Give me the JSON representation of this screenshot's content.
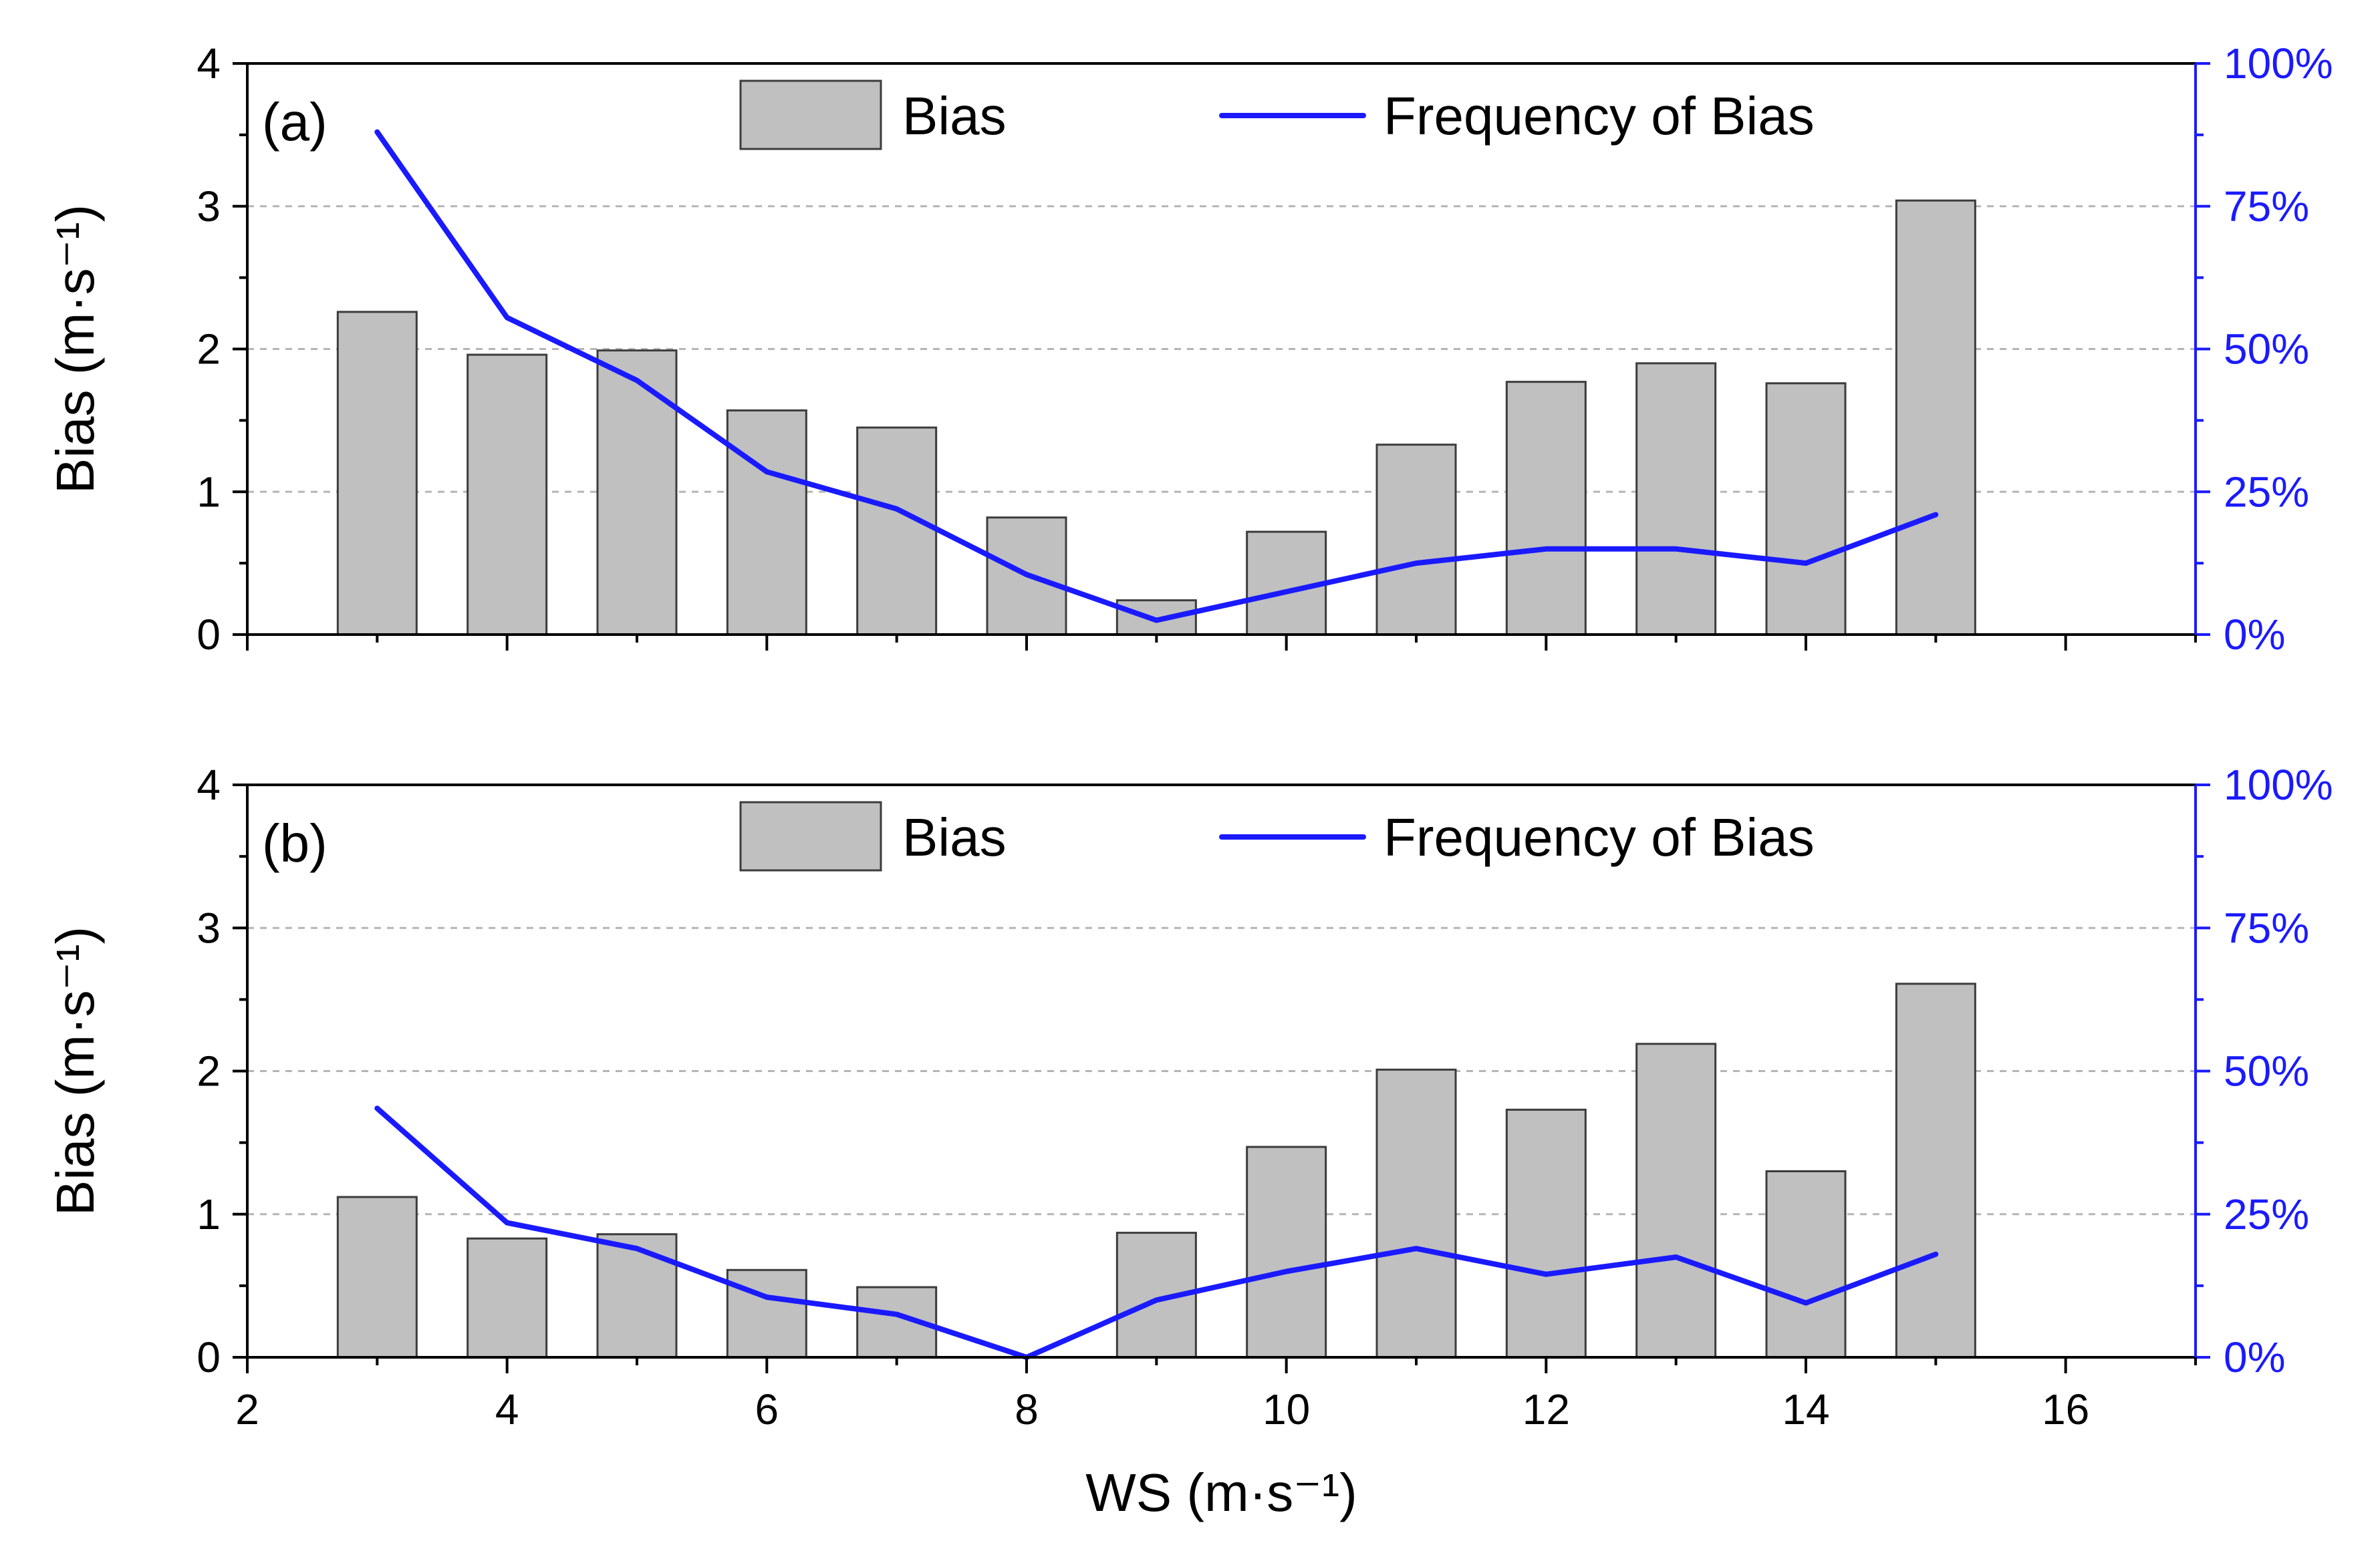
{
  "chart_data": [
    {
      "type": "bar",
      "panel_label": "(a)",
      "title": "",
      "xlabel": "",
      "ylabel": "Bias (m·s⁻¹)",
      "y2label": "",
      "xlim": [
        2,
        17
      ],
      "ylim": [
        0,
        4
      ],
      "y2lim": [
        0,
        100
      ],
      "x_ticks": [
        2,
        4,
        6,
        8,
        10,
        12,
        14,
        16
      ],
      "y_ticks": [
        "0",
        "1",
        "2",
        "3",
        "4"
      ],
      "y2_ticks": [
        "0%",
        "25%",
        "50%",
        "75%",
        "100%"
      ],
      "show_x_tick_labels": false,
      "grid": "horizontal dashed",
      "legend": [
        "Bias",
        "Frequency of Bias"
      ],
      "legend_position": "top",
      "x": [
        3,
        4,
        5,
        6,
        7,
        8,
        9,
        10,
        11,
        12,
        13,
        14,
        15
      ],
      "series": [
        {
          "name": "Bias",
          "kind": "bar",
          "axis": "left",
          "values": [
            2.26,
            1.96,
            1.99,
            1.57,
            1.45,
            0.82,
            0.24,
            0.72,
            1.33,
            1.77,
            1.9,
            1.76,
            3.04
          ]
        },
        {
          "name": "Frequency of Bias",
          "kind": "line",
          "axis": "right",
          "color": "#1a1aff",
          "values": [
            88,
            55.5,
            44.5,
            28.5,
            22,
            10.5,
            2.5,
            7.5,
            12.5,
            15,
            15,
            12.5,
            21
          ]
        }
      ]
    },
    {
      "type": "bar",
      "panel_label": "(b)",
      "title": "",
      "xlabel": "WS (m·s⁻¹)",
      "ylabel": "Bias (m·s⁻¹)",
      "y2label": "",
      "xlim": [
        2,
        17
      ],
      "ylim": [
        0,
        4
      ],
      "y2lim": [
        0,
        100
      ],
      "x_ticks": [
        2,
        4,
        6,
        8,
        10,
        12,
        14,
        16
      ],
      "x_tick_labels": [
        "2",
        "4",
        "6",
        "8",
        "10",
        "12",
        "14",
        "16"
      ],
      "y_ticks": [
        "0",
        "1",
        "2",
        "3",
        "4"
      ],
      "y2_ticks": [
        "0%",
        "25%",
        "50%",
        "75%",
        "100%"
      ],
      "show_x_tick_labels": true,
      "grid": "horizontal dashed",
      "legend": [
        "Bias",
        "Frequency of Bias"
      ],
      "legend_position": "top",
      "x": [
        3,
        4,
        5,
        6,
        7,
        8,
        9,
        10,
        11,
        12,
        13,
        14,
        15
      ],
      "series": [
        {
          "name": "Bias",
          "kind": "bar",
          "axis": "left",
          "values": [
            1.12,
            0.83,
            0.86,
            0.61,
            0.49,
            0,
            0.87,
            1.47,
            2.01,
            1.73,
            2.19,
            1.3,
            2.61
          ]
        },
        {
          "name": "Frequency of Bias",
          "kind": "line",
          "axis": "right",
          "color": "#1a1aff",
          "values": [
            43.5,
            23.5,
            19,
            10.5,
            7.5,
            0,
            10,
            15,
            19,
            14.5,
            17.5,
            9.5,
            18
          ]
        }
      ]
    }
  ]
}
